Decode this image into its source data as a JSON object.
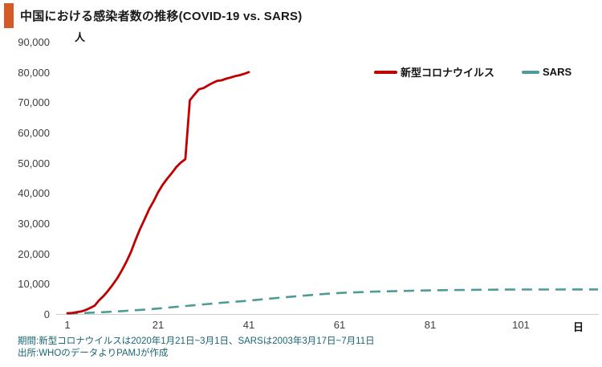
{
  "header": {
    "title": "中国における感染者数の推移(COVID-19 vs. SARS)",
    "accent_color": "#d45b28"
  },
  "y_axis": {
    "unit": "人",
    "tick_labels": [
      "0",
      "10,000",
      "20,000",
      "30,000",
      "40,000",
      "50,000",
      "60,000",
      "70,000",
      "80,000",
      "90,000"
    ]
  },
  "x_axis": {
    "unit": "日",
    "tick_labels": [
      "1",
      "21",
      "41",
      "61",
      "81",
      "101"
    ]
  },
  "legend": {
    "items": [
      {
        "label": "新型コロナウイルス",
        "color": "#c00000",
        "style": "solid"
      },
      {
        "label": "SARS",
        "color": "#4f9b98",
        "style": "dashed"
      }
    ]
  },
  "footer": {
    "line1": "期間:新型コロナウイルスは2020年1月21日~3月1日、SARSは2003年3月17日~7月11日",
    "line2": "出所:WHOのデータよりPAMJが作成",
    "color": "#1a6673"
  },
  "chart_data": {
    "type": "line",
    "title": "中国における感染者数の推移(COVID-19 vs. SARS)",
    "xlabel": "日",
    "ylabel": "人",
    "xlim": [
      1,
      118
    ],
    "ylim": [
      0,
      90000
    ],
    "grid": false,
    "legend_position": "top-right",
    "x_ticks": [
      1,
      21,
      41,
      61,
      81,
      101
    ],
    "y_ticks": [
      0,
      10000,
      20000,
      30000,
      40000,
      50000,
      60000,
      70000,
      80000,
      90000
    ],
    "series": [
      {
        "name": "新型コロナウイルス",
        "color": "#c00000",
        "style": "solid",
        "x_start": 1,
        "x_step": 1,
        "values": [
          278,
          309,
          571,
          830,
          1297,
          1985,
          2761,
          4537,
          5997,
          7736,
          9720,
          11821,
          14411,
          17238,
          20471,
          24363,
          28060,
          31211,
          34598,
          37251,
          40235,
          42708,
          44730,
          46550,
          48548,
          50054,
          51174,
          70635,
          72528,
          74280,
          74675,
          75569,
          76392,
          77042,
          77262,
          77780,
          78191,
          78630,
          78961,
          79394,
          79968
        ]
      },
      {
        "name": "SARS",
        "color": "#4f9b98",
        "style": "dashed",
        "dash": "13 8",
        "points": [
          [
            1,
            170
          ],
          [
            5,
            350
          ],
          [
            9,
            600
          ],
          [
            13,
            950
          ],
          [
            17,
            1350
          ],
          [
            21,
            1800
          ],
          [
            25,
            2350
          ],
          [
            29,
            2900
          ],
          [
            33,
            3450
          ],
          [
            37,
            3950
          ],
          [
            41,
            4400
          ],
          [
            45,
            5000
          ],
          [
            49,
            5550
          ],
          [
            53,
            6050
          ],
          [
            57,
            6550
          ],
          [
            61,
            6950
          ],
          [
            65,
            7200
          ],
          [
            69,
            7400
          ],
          [
            73,
            7550
          ],
          [
            77,
            7700
          ],
          [
            81,
            7800
          ],
          [
            85,
            7900
          ],
          [
            89,
            7970
          ],
          [
            93,
            8020
          ],
          [
            97,
            8060
          ],
          [
            101,
            8090
          ],
          [
            105,
            8100
          ],
          [
            109,
            8110
          ],
          [
            113,
            8115
          ],
          [
            118,
            8120
          ]
        ]
      }
    ]
  }
}
